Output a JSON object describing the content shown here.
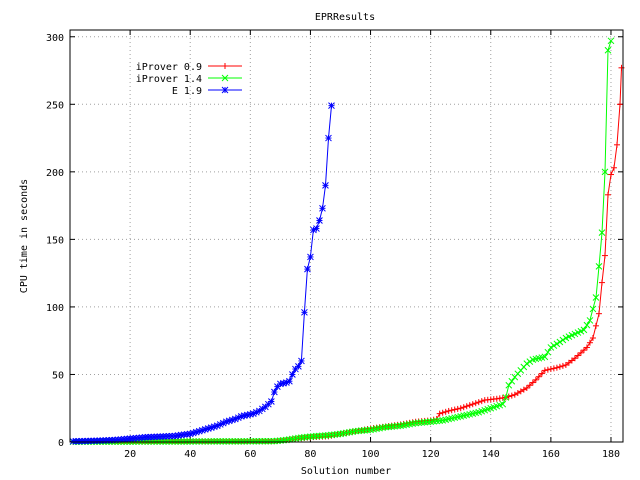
{
  "chart_data": {
    "type": "line",
    "title": "EPRResults",
    "xlabel": "Solution number",
    "ylabel": "CPU time in seconds",
    "xlim": [
      0,
      184
    ],
    "ylim": [
      0,
      305
    ],
    "xticks": [
      20,
      40,
      60,
      80,
      100,
      120,
      140,
      160,
      180
    ],
    "yticks": [
      0,
      50,
      100,
      150,
      200,
      250,
      300
    ],
    "grid": true,
    "legend_position": "top-left",
    "series": [
      {
        "name": "iProver 0.9",
        "color": "#ff0000",
        "marker": "plus",
        "points": [
          [
            1,
            0.2
          ],
          [
            20,
            0.3
          ],
          [
            40,
            0.4
          ],
          [
            60,
            0.5
          ],
          [
            68,
            0.6
          ],
          [
            72,
            1.5
          ],
          [
            76,
            2.5
          ],
          [
            80,
            3.5
          ],
          [
            86,
            4.2
          ],
          [
            90,
            6
          ],
          [
            95,
            8
          ],
          [
            100,
            10
          ],
          [
            105,
            11.5
          ],
          [
            110,
            13
          ],
          [
            115,
            15
          ],
          [
            120,
            16
          ],
          [
            122,
            17
          ],
          [
            123,
            21
          ],
          [
            126,
            23
          ],
          [
            130,
            25
          ],
          [
            134,
            28
          ],
          [
            138,
            31
          ],
          [
            142,
            32
          ],
          [
            145,
            33
          ],
          [
            148,
            35
          ],
          [
            152,
            40
          ],
          [
            155,
            46
          ],
          [
            158,
            53
          ],
          [
            162,
            55
          ],
          [
            165,
            57
          ],
          [
            168,
            62
          ],
          [
            170,
            66
          ],
          [
            172,
            70
          ],
          [
            174,
            77
          ],
          [
            176,
            95
          ],
          [
            177,
            118
          ],
          [
            178,
            138
          ],
          [
            179,
            183
          ],
          [
            180,
            198
          ],
          [
            181,
            203
          ],
          [
            182,
            220
          ],
          [
            183,
            250
          ],
          [
            183.5,
            277
          ]
        ]
      },
      {
        "name": "iProver 1.4",
        "color": "#00ff00",
        "marker": "cross",
        "points": [
          [
            1,
            0.2
          ],
          [
            20,
            0.3
          ],
          [
            40,
            0.4
          ],
          [
            60,
            0.5
          ],
          [
            68,
            0.6
          ],
          [
            72,
            1.5
          ],
          [
            76,
            3
          ],
          [
            80,
            4
          ],
          [
            86,
            5
          ],
          [
            90,
            6
          ],
          [
            95,
            8
          ],
          [
            100,
            9
          ],
          [
            105,
            11
          ],
          [
            110,
            12
          ],
          [
            115,
            14
          ],
          [
            120,
            15
          ],
          [
            124,
            16
          ],
          [
            128,
            18
          ],
          [
            132,
            20
          ],
          [
            136,
            22
          ],
          [
            140,
            25
          ],
          [
            144,
            28
          ],
          [
            145,
            33
          ],
          [
            146,
            42
          ],
          [
            148,
            48
          ],
          [
            150,
            53
          ],
          [
            152,
            58
          ],
          [
            154,
            61
          ],
          [
            156,
            62
          ],
          [
            158,
            63
          ],
          [
            160,
            70
          ],
          [
            163,
            74
          ],
          [
            165,
            77
          ],
          [
            168,
            80
          ],
          [
            171,
            83
          ],
          [
            173,
            90
          ],
          [
            175,
            107
          ],
          [
            176,
            130
          ],
          [
            177,
            155
          ],
          [
            178,
            200
          ],
          [
            179,
            290
          ],
          [
            180,
            297
          ]
        ]
      },
      {
        "name": "E 1.9",
        "color": "#0000ff",
        "marker": "star",
        "points": [
          [
            1,
            0.5
          ],
          [
            5,
            0.7
          ],
          [
            10,
            1
          ],
          [
            15,
            1.5
          ],
          [
            20,
            2.5
          ],
          [
            25,
            3.5
          ],
          [
            30,
            4
          ],
          [
            35,
            4.5
          ],
          [
            38,
            5.5
          ],
          [
            40,
            6
          ],
          [
            43,
            8
          ],
          [
            46,
            10
          ],
          [
            49,
            12
          ],
          [
            52,
            15
          ],
          [
            55,
            17
          ],
          [
            57,
            19
          ],
          [
            59,
            20
          ],
          [
            61,
            21
          ],
          [
            63,
            23
          ],
          [
            65,
            26
          ],
          [
            67,
            30
          ],
          [
            68,
            37
          ],
          [
            69,
            41
          ],
          [
            70,
            43
          ],
          [
            72,
            44
          ],
          [
            73,
            45
          ],
          [
            74,
            50
          ],
          [
            75,
            54
          ],
          [
            76,
            56
          ],
          [
            77,
            60
          ],
          [
            78,
            96
          ],
          [
            79,
            128
          ],
          [
            80,
            137
          ],
          [
            81,
            157
          ],
          [
            82,
            158
          ],
          [
            83,
            164
          ],
          [
            84,
            173
          ],
          [
            85,
            190
          ],
          [
            86,
            225
          ],
          [
            87,
            249
          ]
        ]
      }
    ]
  }
}
